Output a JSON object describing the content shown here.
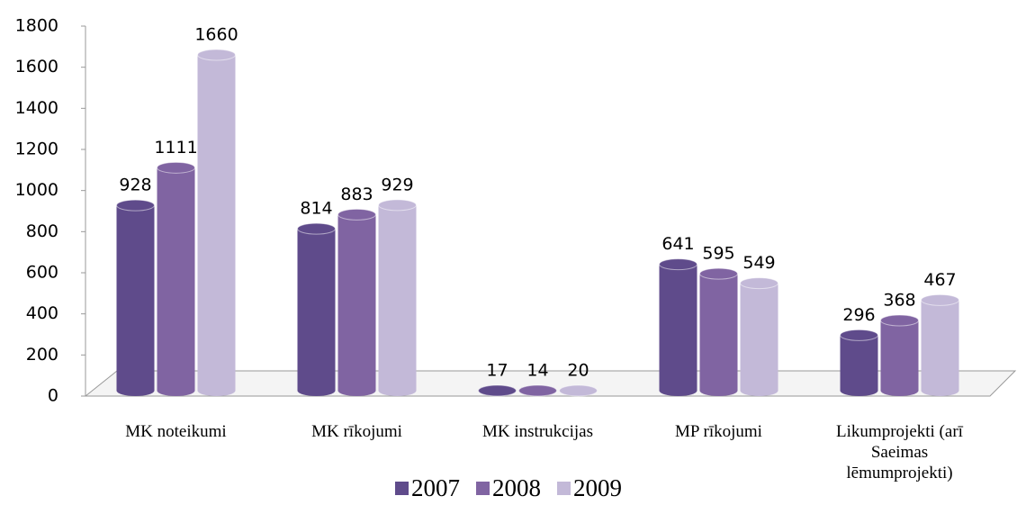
{
  "chart_data": {
    "type": "bar",
    "categories": [
      "MK noteikumi",
      "MK rīkojumi",
      "MK instrukcijas",
      "MP rīkojumi",
      "Likumprojekti (arī Saeimas lēmumprojekti)"
    ],
    "series": [
      {
        "name": "2007",
        "color": "#5f4b8b",
        "values": [
          928,
          814,
          17,
          641,
          296
        ]
      },
      {
        "name": "2008",
        "color": "#8064a2",
        "values": [
          1111,
          883,
          14,
          595,
          368
        ]
      },
      {
        "name": "2009",
        "color": "#c3b9d8",
        "values": [
          1660,
          929,
          20,
          549,
          467
        ]
      }
    ],
    "ylim": [
      0,
      1800
    ],
    "yticks": [
      0,
      200,
      400,
      600,
      800,
      1000,
      1200,
      1400,
      1600,
      1800
    ],
    "legend": "bottom"
  }
}
